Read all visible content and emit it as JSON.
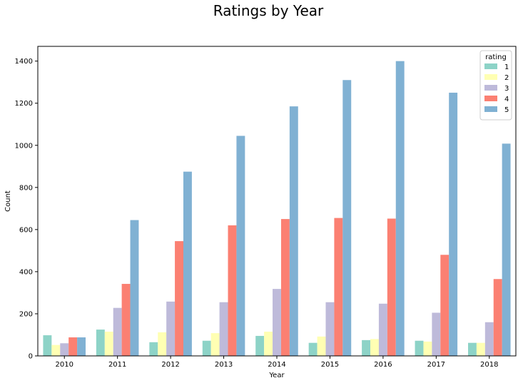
{
  "chart_data": {
    "type": "bar",
    "title": "Ratings by Year",
    "xlabel": "Year",
    "ylabel": "Count",
    "ylim": [
      0,
      1470
    ],
    "yticks": [
      0,
      200,
      400,
      600,
      800,
      1000,
      1200,
      1400
    ],
    "categories": [
      "2010",
      "2011",
      "2012",
      "2013",
      "2014",
      "2015",
      "2016",
      "2017",
      "2018"
    ],
    "legend": {
      "title": "rating",
      "placement": "top-right"
    },
    "grid": false,
    "series": [
      {
        "name": "1",
        "color": "#8dd3c7",
        "values": [
          98,
          125,
          65,
          72,
          95,
          62,
          75,
          72,
          62
        ]
      },
      {
        "name": "2",
        "color": "#ffffb3",
        "values": [
          52,
          115,
          112,
          108,
          115,
          92,
          80,
          68,
          62
        ]
      },
      {
        "name": "3",
        "color": "#bebada",
        "values": [
          60,
          228,
          258,
          255,
          318,
          255,
          248,
          205,
          160
        ]
      },
      {
        "name": "4",
        "color": "#fb8072",
        "values": [
          88,
          342,
          545,
          620,
          650,
          655,
          652,
          480,
          365
        ]
      },
      {
        "name": "5",
        "color": "#80b1d3",
        "values": [
          88,
          645,
          875,
          1045,
          1185,
          1310,
          1400,
          1250,
          1008
        ]
      }
    ]
  }
}
